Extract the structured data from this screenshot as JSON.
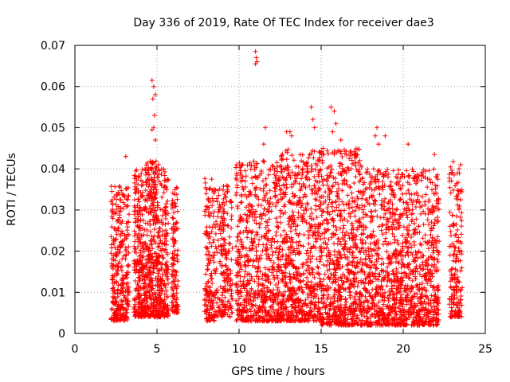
{
  "chart_data": {
    "type": "scatter",
    "title": "Day 336 of 2019, Rate Of TEC Index for receiver dae3",
    "xlabel": "GPS time / hours",
    "ylabel": "ROTI / TECUs",
    "xlim": [
      0,
      25
    ],
    "ylim": [
      0,
      0.07
    ],
    "x_ticks": [
      "0",
      "5",
      "10",
      "15",
      "20",
      "25"
    ],
    "y_ticks": [
      "0",
      "0.01",
      "0.02",
      "0.03",
      "0.04",
      "0.05",
      "0.06",
      "0.07"
    ],
    "grid": true,
    "marker": "+",
    "color": "#ff0000",
    "clusters": [
      {
        "x": [
          2.2,
          3.3
        ],
        "ymin": 0.003,
        "ymax": 0.036,
        "density": 320
      },
      {
        "x": [
          3.6,
          4.3
        ],
        "ymin": 0.004,
        "ymax": 0.04,
        "density": 260
      },
      {
        "x": [
          4.3,
          5.1
        ],
        "ymin": 0.004,
        "ymax": 0.042,
        "density": 340
      },
      {
        "x": [
          5.1,
          5.7
        ],
        "ymin": 0.004,
        "ymax": 0.04,
        "density": 200
      },
      {
        "x": [
          5.9,
          6.3
        ],
        "ymin": 0.005,
        "ymax": 0.036,
        "density": 120
      },
      {
        "x": [
          7.9,
          8.5
        ],
        "ymin": 0.003,
        "ymax": 0.038,
        "density": 160
      },
      {
        "x": [
          8.5,
          9.6
        ],
        "ymin": 0.004,
        "ymax": 0.036,
        "density": 220
      },
      {
        "x": [
          9.8,
          12.5
        ],
        "ymin": 0.003,
        "ymax": 0.042,
        "density": 700
      },
      {
        "x": [
          12.5,
          15.0
        ],
        "ymin": 0.003,
        "ymax": 0.045,
        "density": 700
      },
      {
        "x": [
          15.0,
          17.5
        ],
        "ymin": 0.002,
        "ymax": 0.045,
        "density": 720
      },
      {
        "x": [
          17.5,
          20.2
        ],
        "ymin": 0.002,
        "ymax": 0.04,
        "density": 720
      },
      {
        "x": [
          20.2,
          22.2
        ],
        "ymin": 0.002,
        "ymax": 0.04,
        "density": 520
      },
      {
        "x": [
          22.8,
          23.6
        ],
        "ymin": 0.004,
        "ymax": 0.042,
        "density": 180
      }
    ],
    "outliers": [
      {
        "x": 4.7,
        "y": 0.0615
      },
      {
        "x": 4.8,
        "y": 0.06
      },
      {
        "x": 4.9,
        "y": 0.058
      },
      {
        "x": 4.75,
        "y": 0.057
      },
      {
        "x": 4.85,
        "y": 0.053
      },
      {
        "x": 4.8,
        "y": 0.05
      },
      {
        "x": 4.7,
        "y": 0.0495
      },
      {
        "x": 4.9,
        "y": 0.047
      },
      {
        "x": 3.1,
        "y": 0.043
      },
      {
        "x": 11.0,
        "y": 0.0685
      },
      {
        "x": 11.05,
        "y": 0.067
      },
      {
        "x": 11.1,
        "y": 0.066
      },
      {
        "x": 11.0,
        "y": 0.0655
      },
      {
        "x": 11.6,
        "y": 0.05
      },
      {
        "x": 11.5,
        "y": 0.046
      },
      {
        "x": 13.1,
        "y": 0.049
      },
      {
        "x": 13.2,
        "y": 0.048
      },
      {
        "x": 14.4,
        "y": 0.055
      },
      {
        "x": 14.5,
        "y": 0.052
      },
      {
        "x": 15.6,
        "y": 0.055
      },
      {
        "x": 15.8,
        "y": 0.054
      },
      {
        "x": 15.9,
        "y": 0.051
      },
      {
        "x": 15.7,
        "y": 0.049
      },
      {
        "x": 18.4,
        "y": 0.05
      },
      {
        "x": 18.3,
        "y": 0.048
      },
      {
        "x": 18.9,
        "y": 0.048
      },
      {
        "x": 18.5,
        "y": 0.046
      },
      {
        "x": 20.3,
        "y": 0.046
      },
      {
        "x": 21.9,
        "y": 0.0435
      },
      {
        "x": 23.5,
        "y": 0.041
      },
      {
        "x": 23.4,
        "y": 0.04
      },
      {
        "x": 23.3,
        "y": 0.039
      },
      {
        "x": 12.9,
        "y": 0.049
      },
      {
        "x": 16.2,
        "y": 0.047
      },
      {
        "x": 14.6,
        "y": 0.05
      }
    ]
  }
}
